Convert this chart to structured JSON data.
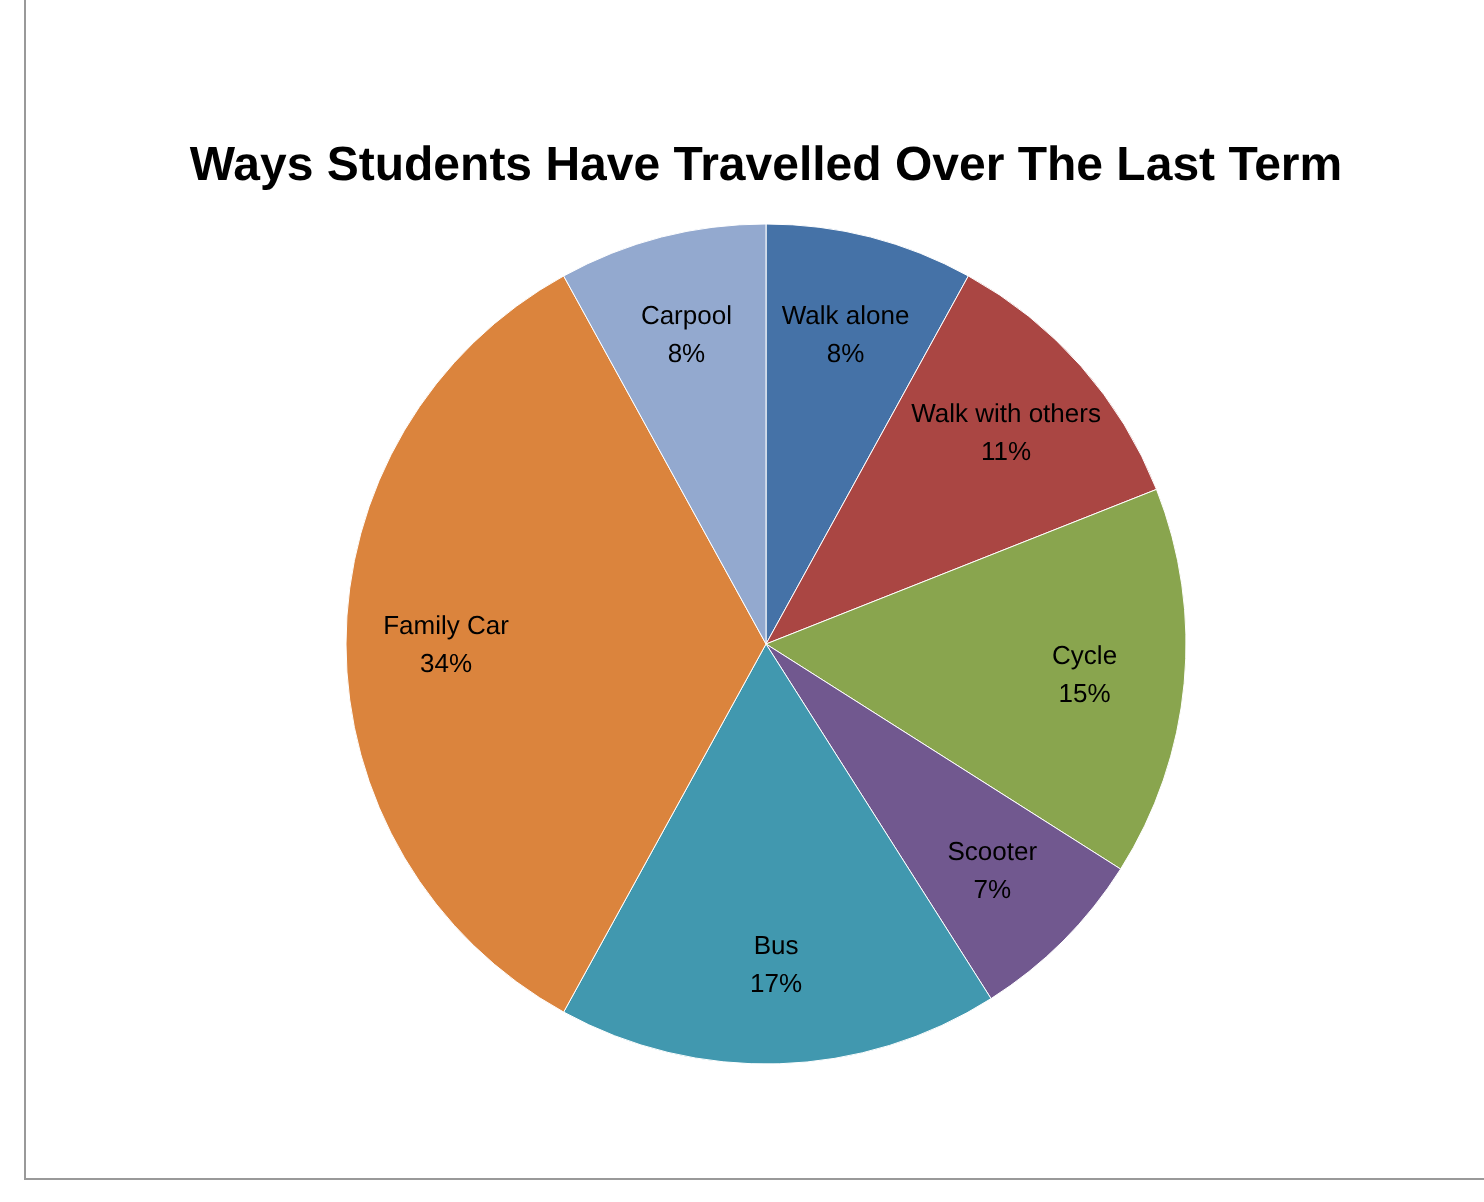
{
  "chart_data": {
    "type": "pie",
    "title": "Ways Students Have Travelled Over The Last Term",
    "categories": [
      "Walk alone",
      "Walk with others",
      "Cycle",
      "Scooter",
      "Bus",
      "Family Car",
      "Carpool"
    ],
    "values": [
      8,
      11,
      15,
      7,
      17,
      34,
      8
    ],
    "colors": [
      "#4572a7",
      "#aa4643",
      "#89a54e",
      "#71588f",
      "#4198af",
      "#db843d",
      "#93a9cf"
    ],
    "value_labels": [
      "8%",
      "11%",
      "15%",
      "7%",
      "17%",
      "34%",
      "8%"
    ],
    "legend": false
  }
}
